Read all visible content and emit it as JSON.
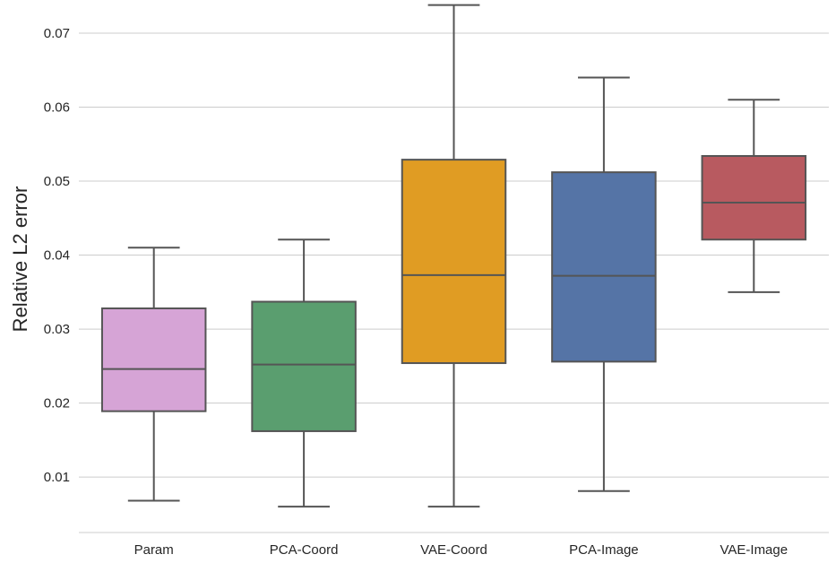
{
  "chart_data": {
    "type": "box",
    "title": "",
    "xlabel": "",
    "ylabel": "Relative L2 error",
    "ylim": [
      0.0025,
      0.074
    ],
    "yticks": [
      "0.01",
      "0.02",
      "0.03",
      "0.04",
      "0.05",
      "0.06",
      "0.07"
    ],
    "ytick_values": [
      0.01,
      0.02,
      0.03,
      0.04,
      0.05,
      0.06,
      0.07
    ],
    "grid": true,
    "categories": [
      "Param",
      "PCA-Coord",
      "VAE-Coord",
      "PCA-Image",
      "VAE-Image"
    ],
    "boxes": [
      {
        "name": "Param",
        "whisker_low": 0.0068,
        "q1": 0.0189,
        "median": 0.0246,
        "q3": 0.0328,
        "whisker_high": 0.041,
        "color": "#d6a4d6"
      },
      {
        "name": "PCA-Coord",
        "whisker_low": 0.006,
        "q1": 0.0162,
        "median": 0.0252,
        "q3": 0.0337,
        "whisker_high": 0.0421,
        "color": "#5a9e6f"
      },
      {
        "name": "VAE-Coord",
        "whisker_low": 0.006,
        "q1": 0.0254,
        "median": 0.0373,
        "q3": 0.0529,
        "whisker_high": 0.0738,
        "color": "#e09c23"
      },
      {
        "name": "PCA-Image",
        "whisker_low": 0.0081,
        "q1": 0.0256,
        "median": 0.0372,
        "q3": 0.0512,
        "whisker_high": 0.064,
        "color": "#5574a6"
      },
      {
        "name": "VAE-Image",
        "whisker_low": 0.035,
        "q1": 0.0421,
        "median": 0.0471,
        "q3": 0.0534,
        "whisker_high": 0.061,
        "color": "#b85a60"
      }
    ],
    "line_color": "#555555",
    "grid_color": "#cccccc"
  }
}
